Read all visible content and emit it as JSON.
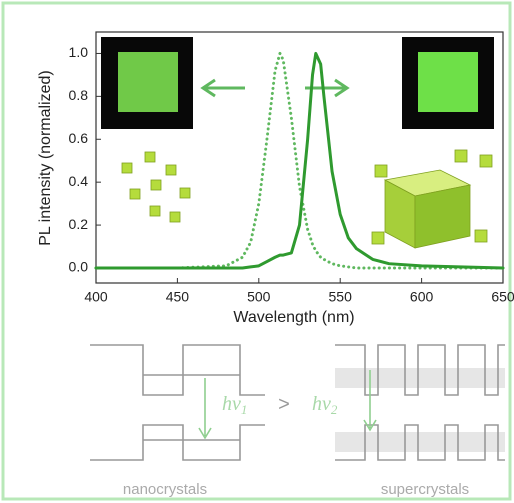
{
  "chart_data": {
    "type": "line",
    "xlabel": "Wavelength (nm)",
    "ylabel": "PL intensity (normalized)",
    "x": [
      400,
      450,
      480,
      490,
      495,
      500,
      505,
      510,
      513,
      515,
      520,
      525,
      530,
      533,
      535,
      538,
      540,
      545,
      550,
      555,
      560,
      570,
      580,
      600,
      650
    ],
    "series": [
      {
        "color": "#5fb85f",
        "style": "dotted",
        "values": [
          0,
          0,
          0.01,
          0.05,
          0.12,
          0.3,
          0.6,
          0.92,
          1.0,
          0.97,
          0.7,
          0.38,
          0.18,
          0.11,
          0.08,
          0.05,
          0.04,
          0.02,
          0.01,
          0.005,
          0,
          0,
          0,
          0,
          0
        ]
      },
      {
        "color": "#2f9a2f",
        "style": "solid",
        "values": [
          0,
          0,
          0,
          0,
          0.005,
          0.01,
          0.03,
          0.05,
          0.06,
          0.06,
          0.07,
          0.2,
          0.6,
          0.9,
          1.0,
          0.95,
          0.8,
          0.45,
          0.25,
          0.14,
          0.09,
          0.04,
          0.02,
          0.01,
          0
        ]
      }
    ],
    "xlim": [
      400,
      650
    ],
    "ylim": [
      -0.07,
      1.1
    ],
    "xticks": [
      400,
      450,
      500,
      550,
      600,
      650
    ],
    "yticks": [
      {
        "value": 0,
        "label": "0.0"
      },
      0.2,
      0.4,
      0.6,
      0.8,
      {
        "value": 1,
        "label": "1.0"
      }
    ],
    "grid": false
  },
  "diagram": {
    "transitions": [
      {
        "symbol": "hν",
        "subscript": "1"
      },
      {
        "symbol": "hν",
        "subscript": "2"
      }
    ],
    "comparison": ">",
    "labels": [
      "nanocrystals",
      "supercrystals"
    ]
  }
}
